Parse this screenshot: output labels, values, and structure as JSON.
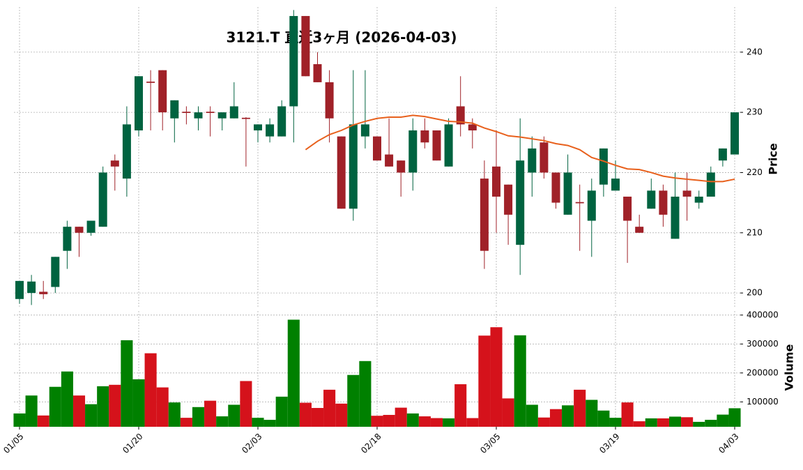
{
  "chart_data": {
    "type": "candlestick",
    "title": "3121.T  直近3ヶ月  (2026-04-03)",
    "ylabel": "Price",
    "categories": [
      "01/05",
      null,
      null,
      null,
      null,
      null,
      null,
      null,
      null,
      null,
      "01/20",
      null,
      null,
      null,
      null,
      null,
      null,
      null,
      null,
      null,
      "02/03",
      null,
      null,
      null,
      null,
      null,
      null,
      null,
      null,
      null,
      "02/18",
      null,
      null,
      null,
      null,
      null,
      null,
      null,
      null,
      null,
      "03/05",
      null,
      null,
      null,
      null,
      null,
      null,
      null,
      null,
      null,
      "03/19",
      null,
      null,
      null,
      null,
      null,
      null,
      null,
      null,
      null,
      "04/03"
    ],
    "open": [
      199,
      200,
      200.2,
      201,
      207,
      211,
      210,
      211,
      222,
      219,
      227,
      235.1,
      237,
      229,
      230.1,
      229,
      230.1,
      229,
      229,
      229.1,
      227,
      226,
      226,
      231,
      246,
      238,
      235,
      226,
      214,
      226,
      226,
      223,
      222,
      220,
      227,
      227,
      221,
      231,
      228,
      219,
      221,
      218,
      208,
      220,
      225,
      220,
      213,
      215.1,
      212,
      218,
      217,
      216,
      211,
      214,
      217,
      209,
      217,
      215,
      216,
      222,
      223
    ],
    "high": [
      202,
      203,
      202,
      206,
      212,
      211,
      212,
      221,
      223,
      231,
      236,
      237,
      237,
      232,
      231,
      231,
      231,
      230,
      235,
      229.2,
      228,
      229,
      232,
      247,
      246,
      240,
      237,
      226,
      237,
      237,
      226,
      229,
      222,
      229,
      229,
      227,
      229,
      236,
      229,
      222,
      227,
      218,
      229,
      226,
      226,
      220,
      223,
      218,
      219,
      224,
      222,
      216,
      213,
      219,
      218,
      220,
      220,
      217,
      221,
      224,
      230
    ],
    "low": [
      198.2,
      198,
      199,
      200,
      204,
      206,
      209.5,
      211,
      217,
      216,
      226,
      227,
      227,
      225,
      228,
      227,
      226,
      227,
      229,
      221,
      225,
      225,
      226,
      225,
      236,
      235,
      225,
      214,
      212,
      224,
      222,
      221,
      216,
      217,
      224,
      222,
      221,
      226,
      224,
      204,
      210,
      208,
      203,
      216,
      219,
      214,
      213,
      207,
      206,
      216,
      217,
      205,
      210,
      214,
      211,
      209,
      212,
      214,
      216,
      221,
      223
    ],
    "close": [
      202,
      201.9,
      199.8,
      206,
      211,
      210,
      212,
      220,
      221,
      228,
      236,
      234.9,
      230,
      232,
      229.9,
      230,
      229.9,
      230,
      231,
      228.9,
      228,
      228,
      231,
      246,
      236,
      235,
      229,
      214,
      228,
      228,
      222,
      221,
      220,
      227,
      225,
      222,
      228,
      228,
      227,
      207,
      216,
      213,
      222,
      224,
      220,
      215,
      220,
      214.9,
      217,
      224,
      219,
      212,
      210,
      217,
      213,
      216,
      216,
      216,
      220,
      224,
      230
    ],
    "up_color": "#006340",
    "down_color": "#a02128",
    "moving_average": {
      "color": "#e8601c",
      "values": [
        null,
        null,
        null,
        null,
        null,
        null,
        null,
        null,
        null,
        null,
        null,
        null,
        null,
        null,
        null,
        null,
        null,
        null,
        null,
        null,
        null,
        null,
        null,
        null,
        223.8,
        225.2,
        226.3,
        227.0,
        227.9,
        228.5,
        229.0,
        229.2,
        229.2,
        229.5,
        229.3,
        228.9,
        228.5,
        228.4,
        228.2,
        227.4,
        226.8,
        226.1,
        225.9,
        225.6,
        225.3,
        224.8,
        224.5,
        223.8,
        222.5,
        221.9,
        221.2,
        220.6,
        220.5,
        220.0,
        219.4,
        219.1,
        218.9,
        218.7,
        218.5,
        218.5,
        218.9
      ]
    },
    "ylim": [
      197.7,
      247.5
    ],
    "yticks": [
      200,
      210,
      220,
      230,
      240
    ],
    "grid": true,
    "volume": {
      "label": "Volume",
      "up_color": "#008000",
      "down_color": "#d5121b",
      "values": [
        60000,
        122000,
        53000,
        152000,
        205000,
        122000,
        92000,
        154000,
        159000,
        313000,
        178000,
        268000,
        150000,
        98000,
        45000,
        82000,
        104000,
        50000,
        90000,
        172000,
        45000,
        38000,
        118000,
        384000,
        97000,
        79000,
        142000,
        94000,
        193000,
        241000,
        52000,
        55000,
        80000,
        60000,
        50000,
        44000,
        43000,
        161000,
        44000,
        329000,
        358000,
        112000,
        330000,
        90000,
        46000,
        75000,
        88000,
        142000,
        107000,
        70000,
        45000,
        98000,
        33000,
        43000,
        43000,
        49000,
        47000,
        31000,
        38000,
        56000,
        78000
      ],
      "ylim": [
        14000,
        414000
      ],
      "yticks": [
        100000,
        200000,
        300000,
        400000
      ]
    }
  }
}
